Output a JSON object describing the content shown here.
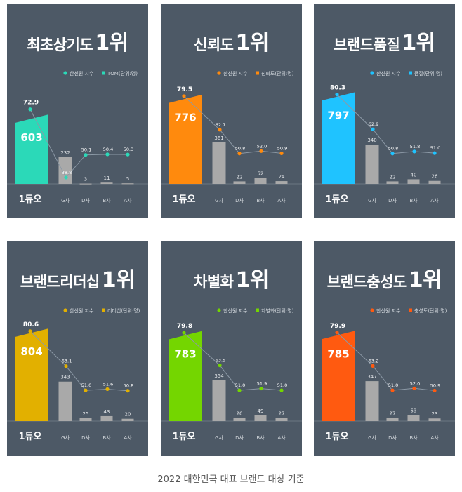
{
  "caption": "2022 대한민국 대표 브랜드 대상 기준",
  "brand_logo": "1듀오",
  "chart_data": [
    {
      "type": "bar",
      "title": "최초상기도",
      "rank_label": "1위",
      "accent": "#2bd9b8",
      "categories": [
        "1듀오",
        "G사",
        "D사",
        "B사",
        "A사"
      ],
      "legend": [
        "한신원 지수",
        "TOM(단위:명)"
      ],
      "bar_values": [
        603,
        232,
        3,
        11,
        5
      ],
      "line_values": [
        72.9,
        38.8,
        50.1,
        50.4,
        50.3
      ]
    },
    {
      "type": "bar",
      "title": "신뢰도",
      "rank_label": "1위",
      "accent": "#ff8a0d",
      "categories": [
        "1듀오",
        "G사",
        "D사",
        "B사",
        "A사"
      ],
      "legend": [
        "한신원 지수",
        "신뢰도(단위:명)"
      ],
      "bar_values": [
        776,
        361,
        22,
        52,
        24
      ],
      "line_values": [
        79.5,
        62.7,
        50.8,
        52.0,
        50.9
      ]
    },
    {
      "type": "bar",
      "title": "브랜드품질",
      "rank_label": "1위",
      "accent": "#1fc3ff",
      "categories": [
        "1듀오",
        "G사",
        "D사",
        "B사",
        "A사"
      ],
      "legend": [
        "한신원 지수",
        "품질(단위:명)"
      ],
      "bar_values": [
        797,
        340,
        22,
        40,
        26
      ],
      "line_values": [
        80.3,
        62.9,
        50.8,
        51.8,
        51.0
      ]
    },
    {
      "type": "bar",
      "title": "브랜드리더십",
      "rank_label": "1위",
      "accent": "#e2b000",
      "categories": [
        "1듀오",
        "G사",
        "D사",
        "B사",
        "A사"
      ],
      "legend": [
        "한신원 지수",
        "리더십(단위:명)"
      ],
      "bar_values": [
        804,
        343,
        25,
        43,
        20
      ],
      "line_values": [
        80.6,
        63.1,
        51.0,
        51.6,
        50.8
      ]
    },
    {
      "type": "bar",
      "title": "차별화",
      "rank_label": "1위",
      "accent": "#74d600",
      "categories": [
        "1듀오",
        "G사",
        "D사",
        "B사",
        "A사"
      ],
      "legend": [
        "한신원 지수",
        "차별화(단위:명)"
      ],
      "bar_values": [
        783,
        354,
        26,
        49,
        27
      ],
      "line_values": [
        79.8,
        63.5,
        51.0,
        51.9,
        51.0
      ]
    },
    {
      "type": "bar",
      "title": "브랜드충성도",
      "rank_label": "1위",
      "accent": "#ff5a10",
      "categories": [
        "1듀오",
        "G사",
        "D사",
        "B사",
        "A사"
      ],
      "legend": [
        "한신원 지수",
        "충성도(단위:명)"
      ],
      "bar_values": [
        785,
        347,
        27,
        53,
        23
      ],
      "line_values": [
        79.9,
        63.2,
        51.0,
        52.0,
        50.9
      ]
    }
  ]
}
